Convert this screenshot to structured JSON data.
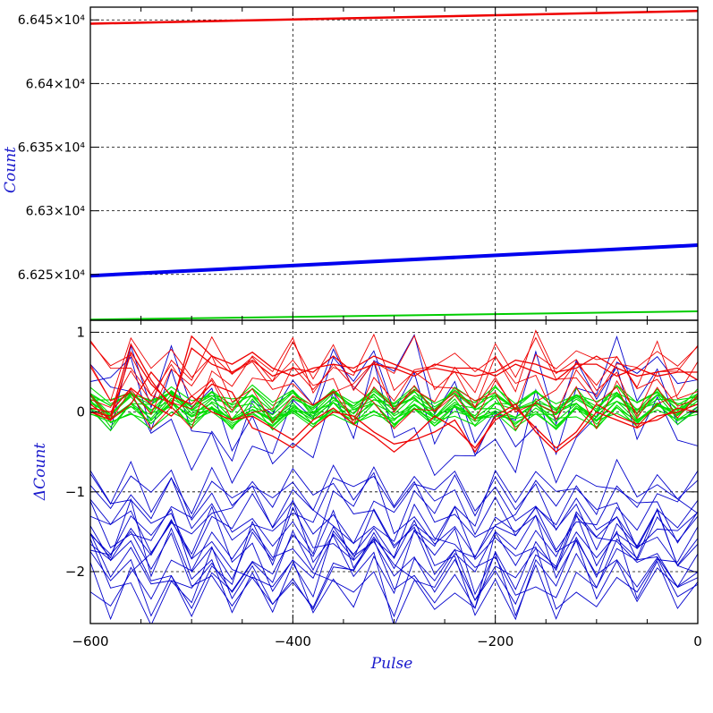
{
  "chart_data": [
    {
      "type": "line",
      "panel": "top",
      "ylabel": "Count",
      "xlim": [
        -600,
        0
      ],
      "ylim": [
        66214,
        66460
      ],
      "yticks": [
        66250,
        66300,
        66350,
        66400,
        66450
      ],
      "ytick_labels": [
        "6.625×10⁴",
        "6.63×10⁴",
        "6.635×10⁴",
        "6.64×10⁴",
        "6.645×10⁴"
      ],
      "grid": true,
      "colors": {
        "red": "#ee0000",
        "blue": "#0000ee",
        "green": "#00cc00"
      },
      "series": [
        {
          "color": "red",
          "x": [
            -600,
            0
          ],
          "y": [
            66447,
            66457
          ]
        },
        {
          "color": "blue",
          "x": [
            -600,
            0
          ],
          "y": [
            66249,
            66273
          ]
        },
        {
          "color": "green",
          "x": [
            -600,
            0
          ],
          "y": [
            66214.5,
            66221
          ]
        }
      ]
    },
    {
      "type": "line",
      "panel": "bottom",
      "xlabel": "Pulse",
      "ylabel": "ΔCount",
      "xlim": [
        -600,
        0
      ],
      "ylim": [
        -2.65,
        1.15
      ],
      "xticks": [
        -600,
        -400,
        -200,
        0
      ],
      "xtick_labels": [
        "−600",
        "−400",
        "−200",
        "0"
      ],
      "yticks": [
        -2,
        -1,
        0,
        1
      ],
      "ytick_labels": [
        "−2",
        "−1",
        "0",
        "1"
      ],
      "grid": true,
      "colors": {
        "red": "#ee0000",
        "blue": "#0000cc",
        "green": "#00dd00"
      },
      "series": [
        {
          "color": "red",
          "x": [
            -600,
            -580,
            -560,
            -540,
            -520,
            -500,
            -480,
            -460,
            -440,
            -420,
            -400,
            -380,
            -360,
            -340,
            -320,
            -300,
            -280,
            -260,
            -240,
            -220,
            -200,
            -180,
            -160,
            -140,
            -120,
            -100,
            -80,
            -60,
            -40,
            -20,
            0
          ],
          "y": [
            0.0,
            -0.05,
            0.85,
            0.4,
            0.05,
            0.95,
            0.7,
            0.6,
            0.75,
            0.55,
            0.45,
            0.55,
            0.6,
            0.55,
            0.7,
            0.6,
            0.5,
            0.55,
            0.5,
            0.45,
            0.5,
            0.65,
            0.6,
            0.5,
            0.55,
            0.7,
            0.55,
            0.45,
            0.5,
            0.55,
            0.4
          ]
        },
        {
          "color": "red",
          "x": [
            -600,
            -580,
            -560,
            -540,
            -520,
            -500,
            -480,
            -460,
            -440,
            -420,
            -400,
            -380,
            -360,
            -340,
            -320,
            -300,
            -280,
            -260,
            -240,
            -220,
            -200,
            -180,
            -160,
            -140,
            -120,
            -100,
            -80,
            -60,
            -40,
            -20,
            0
          ],
          "y": [
            0.1,
            -0.1,
            0.75,
            0.35,
            0.1,
            0.8,
            0.6,
            0.5,
            0.65,
            0.45,
            0.55,
            0.5,
            0.7,
            0.5,
            0.6,
            0.55,
            0.45,
            0.6,
            0.55,
            0.55,
            0.45,
            0.6,
            0.5,
            0.4,
            0.6,
            0.6,
            0.45,
            0.55,
            0.45,
            0.5,
            0.5
          ]
        },
        {
          "color": "red",
          "x": [
            -600,
            -580,
            -560,
            -540,
            -520,
            -500,
            -480,
            -460,
            -440,
            -420,
            -400,
            -380,
            -360,
            -340,
            -320,
            -300,
            -280,
            -260,
            -240,
            -220,
            -200,
            -180,
            -160,
            -140,
            -120,
            -100,
            -80,
            -60,
            -40,
            -20,
            0
          ],
          "y": [
            0.0,
            -0.1,
            0.1,
            0.5,
            0.2,
            0.1,
            0.35,
            0.25,
            -0.2,
            -0.3,
            -0.45,
            -0.2,
            0.0,
            -0.05,
            -0.25,
            -0.4,
            -0.35,
            -0.25,
            -0.1,
            -0.5,
            -0.05,
            0.1,
            -0.25,
            -0.5,
            -0.3,
            0.0,
            -0.1,
            -0.2,
            -0.05,
            0.0,
            0.1
          ]
        },
        {
          "color": "red",
          "x": [
            -600,
            -580,
            -560,
            -540,
            -520,
            -500,
            -480,
            -460,
            -440,
            -420,
            -400,
            -380,
            -360,
            -340,
            -320,
            -300,
            -280,
            -260,
            -240,
            -220,
            -200,
            -180,
            -160,
            -140,
            -120,
            -100,
            -80,
            -60,
            -40,
            -20,
            0
          ],
          "y": [
            0.05,
            0.0,
            0.3,
            0.1,
            -0.05,
            0.2,
            0.0,
            -0.1,
            -0.05,
            -0.2,
            -0.35,
            -0.1,
            0.05,
            -0.15,
            -0.3,
            -0.5,
            -0.3,
            -0.05,
            -0.2,
            -0.45,
            -0.1,
            0.05,
            -0.2,
            -0.45,
            -0.25,
            0.1,
            -0.05,
            -0.15,
            -0.1,
            0.05,
            0.0
          ]
        }
      ]
    }
  ],
  "axes": {
    "top_ylabel": "Count",
    "bottom_ylabel": "ΔCount",
    "xlabel": "Pulse"
  }
}
